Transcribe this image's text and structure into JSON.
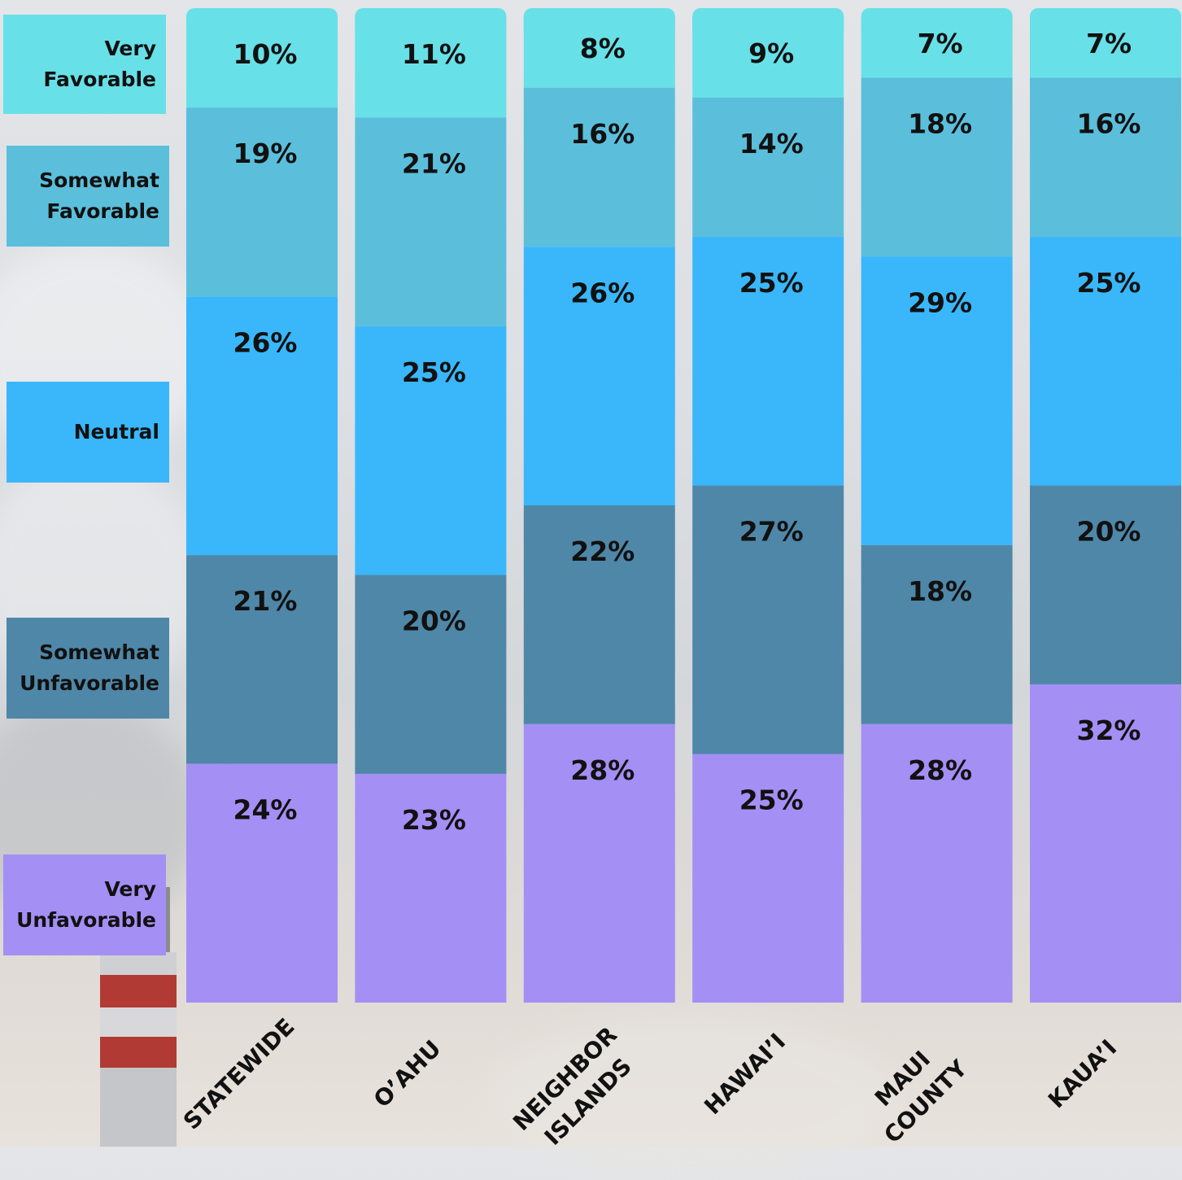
{
  "chart_data": {
    "type": "bar",
    "stacked": true,
    "orientation": "vertical",
    "unit": "%",
    "categories": [
      "STATEWIDE",
      "O’AHU",
      "NEIGHBOR\nISLANDS",
      "HAWAI’I",
      "MAUI\nCOUNTY",
      "KAUA’I"
    ],
    "series": [
      {
        "name": "Very\nFavorable",
        "color": "#68e0e8",
        "values": [
          10,
          11,
          8,
          9,
          7,
          7
        ]
      },
      {
        "name": "Somewhat\nFavorable",
        "color": "#5bbfdc",
        "values": [
          19,
          21,
          16,
          14,
          18,
          16
        ]
      },
      {
        "name": "Neutral",
        "color": "#3ab7fa",
        "values": [
          26,
          25,
          26,
          25,
          29,
          25
        ]
      },
      {
        "name": "Somewhat\nUnfavorable",
        "color": "#4f87a8",
        "values": [
          21,
          20,
          22,
          27,
          18,
          20
        ]
      },
      {
        "name": "Very\nUnfavorable",
        "color": "#a48ff5",
        "values": [
          24,
          23,
          28,
          25,
          28,
          32
        ]
      }
    ],
    "data_labels": [
      [
        "10%",
        "11%",
        "8%",
        "9%",
        "7%",
        "7%"
      ],
      [
        "19%",
        "21%",
        "16%",
        "14%",
        "18%",
        "16%"
      ],
      [
        "26%",
        "25%",
        "26%",
        "25%",
        "29%",
        "25%"
      ],
      [
        "21%",
        "20%",
        "22%",
        "27%",
        "18%",
        "20%"
      ],
      [
        "24%",
        "23%",
        "28%",
        "25%",
        "28%",
        "32%"
      ]
    ],
    "legend": "left",
    "grid": false
  }
}
